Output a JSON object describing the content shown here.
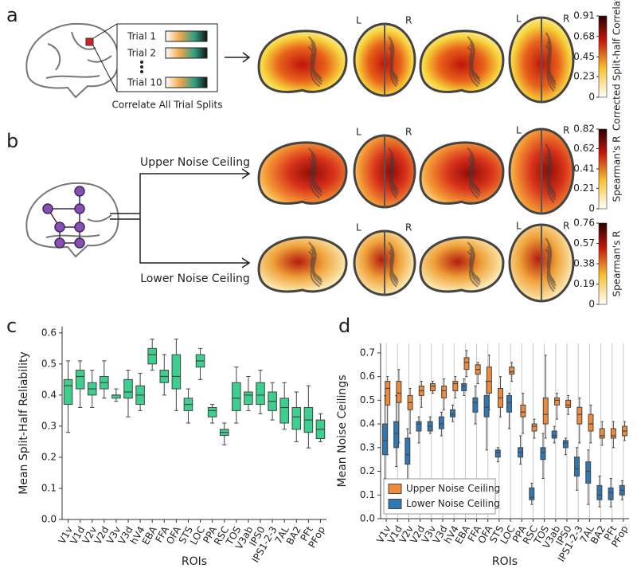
{
  "panel_labels": [
    "a",
    "b",
    "c",
    "d"
  ],
  "panel_a": {
    "trials": [
      "Trial 1",
      "Trial 2",
      "Trial 10"
    ],
    "caption": "Correlate All Trial Splits",
    "view_labels": [
      "L",
      "R"
    ],
    "colorbar": {
      "label": "Corrected Split-half Correlation",
      "ticks": [
        0.91,
        0.68,
        0.45,
        0.23,
        0
      ]
    }
  },
  "panel_b": {
    "branches": [
      "Upper Noise Ceiling",
      "Lower Noise Ceiling"
    ],
    "colorbars": [
      {
        "label": "Spearman's R",
        "ticks": [
          0.82,
          0.62,
          0.41,
          0.21,
          0
        ]
      },
      {
        "label": "Spearman's R",
        "ticks": [
          0.76,
          0.57,
          0.38,
          0.19,
          0
        ]
      }
    ]
  },
  "chart_data": [
    {
      "type": "box",
      "ylabel": "Mean Split-Half Reliability",
      "xlabel": "ROIs",
      "categories": [
        "V1v",
        "V1d",
        "V2v",
        "V2d",
        "V3v",
        "V3d",
        "hV4",
        "EBA",
        "FFA",
        "OFA",
        "STS",
        "LOC",
        "PPA",
        "RSC",
        "TOS",
        "V3ab",
        "IPS0",
        "IPS1-2-3",
        "7AL",
        "BA2",
        "PFt",
        "PFop"
      ],
      "ylim": [
        0,
        0.62
      ],
      "yticks": [
        {
          "value": 0,
          "label": "0.0"
        },
        0.1,
        0.2,
        0.3,
        0.4,
        0.5,
        0.6
      ],
      "series": [
        {
          "color": "#3dcf8e",
          "min": [
            0.28,
            0.36,
            0.36,
            0.39,
            0.38,
            0.33,
            0.35,
            0.48,
            0.4,
            0.35,
            0.31,
            0.45,
            0.31,
            0.24,
            0.31,
            0.35,
            0.34,
            0.32,
            0.29,
            0.25,
            0.23,
            0.25
          ],
          "q1": [
            0.37,
            0.42,
            0.4,
            0.42,
            0.39,
            0.39,
            0.37,
            0.5,
            0.44,
            0.42,
            0.35,
            0.49,
            0.33,
            0.27,
            0.35,
            0.37,
            0.37,
            0.35,
            0.31,
            0.29,
            0.28,
            0.26
          ],
          "median": [
            0.43,
            0.46,
            0.42,
            0.44,
            0.4,
            0.41,
            0.4,
            0.53,
            0.46,
            0.46,
            0.37,
            0.51,
            0.35,
            0.28,
            0.39,
            0.4,
            0.4,
            0.38,
            0.36,
            0.33,
            0.32,
            0.29
          ],
          "q3": [
            0.45,
            0.48,
            0.44,
            0.46,
            0.4,
            0.45,
            0.43,
            0.55,
            0.48,
            0.53,
            0.39,
            0.53,
            0.36,
            0.29,
            0.44,
            0.41,
            0.44,
            0.41,
            0.39,
            0.36,
            0.36,
            0.32
          ],
          "max": [
            0.51,
            0.51,
            0.48,
            0.51,
            0.42,
            0.48,
            0.47,
            0.58,
            0.53,
            0.58,
            0.42,
            0.55,
            0.37,
            0.31,
            0.49,
            0.46,
            0.48,
            0.44,
            0.44,
            0.41,
            0.43,
            0.34
          ]
        }
      ]
    },
    {
      "type": "box",
      "ylabel": "Mean Noise Ceilings",
      "xlabel": "ROIs",
      "categories": [
        "V1v",
        "V1d",
        "V2v",
        "V2d",
        "V3v",
        "V3d",
        "hV4",
        "EBA",
        "FFA",
        "OFA",
        "STS",
        "LOC",
        "PPA",
        "RSC",
        "TOS",
        "V3ab",
        "IPS0",
        "IPS1-2-3",
        "7AL",
        "BA2",
        "PFt",
        "PFop"
      ],
      "ylim": [
        0,
        0.74
      ],
      "yticks": [
        {
          "value": 0,
          "label": "0.0"
        },
        0.1,
        0.2,
        0.3,
        0.4,
        0.5,
        0.6,
        0.7
      ],
      "grid_x": true,
      "legend": "lower left",
      "series": [
        {
          "name": "Upper Noise Ceiling",
          "color": "#ee8a3a",
          "min": [
            0.27,
            0.32,
            0.36,
            0.47,
            0.53,
            0.46,
            0.51,
            0.6,
            0.57,
            0.46,
            0.43,
            0.58,
            0.36,
            0.34,
            0.34,
            0.42,
            0.44,
            0.32,
            0.32,
            0.31,
            0.3,
            0.33
          ],
          "q1": [
            0.48,
            0.49,
            0.46,
            0.52,
            0.54,
            0.51,
            0.54,
            0.63,
            0.61,
            0.53,
            0.47,
            0.61,
            0.43,
            0.37,
            0.4,
            0.48,
            0.47,
            0.4,
            0.37,
            0.34,
            0.34,
            0.35
          ],
          "median": [
            0.55,
            0.53,
            0.49,
            0.54,
            0.56,
            0.54,
            0.57,
            0.66,
            0.63,
            0.58,
            0.51,
            0.62,
            0.45,
            0.39,
            0.44,
            0.5,
            0.48,
            0.44,
            0.4,
            0.35,
            0.35,
            0.37
          ],
          "q3": [
            0.58,
            0.58,
            0.52,
            0.56,
            0.57,
            0.56,
            0.58,
            0.68,
            0.65,
            0.64,
            0.55,
            0.64,
            0.48,
            0.4,
            0.51,
            0.51,
            0.5,
            0.47,
            0.44,
            0.38,
            0.38,
            0.39
          ],
          "max": [
            0.6,
            0.63,
            0.55,
            0.58,
            0.58,
            0.59,
            0.6,
            0.71,
            0.66,
            0.69,
            0.6,
            0.66,
            0.53,
            0.42,
            0.69,
            0.53,
            0.52,
            0.51,
            0.48,
            0.41,
            0.41,
            0.41
          ]
        },
        {
          "name": "Lower Noise Ceiling",
          "color": "#2f78b4",
          "min": [
            0.17,
            0.22,
            0.15,
            0.32,
            0.36,
            0.35,
            0.41,
            0.52,
            0.4,
            0.29,
            0.24,
            0.38,
            0.23,
            0.06,
            0.17,
            0.32,
            0.27,
            0.12,
            0.06,
            0.05,
            0.05,
            0.08
          ],
          "q1": [
            0.27,
            0.3,
            0.23,
            0.37,
            0.37,
            0.38,
            0.43,
            0.54,
            0.45,
            0.43,
            0.26,
            0.45,
            0.26,
            0.08,
            0.25,
            0.34,
            0.3,
            0.18,
            0.15,
            0.08,
            0.08,
            0.1
          ],
          "median": [
            0.33,
            0.36,
            0.27,
            0.4,
            0.39,
            0.4,
            0.44,
            0.56,
            0.49,
            0.47,
            0.28,
            0.49,
            0.28,
            0.09,
            0.28,
            0.35,
            0.32,
            0.21,
            0.2,
            0.1,
            0.11,
            0.12
          ],
          "q3": [
            0.4,
            0.41,
            0.34,
            0.41,
            0.41,
            0.43,
            0.46,
            0.57,
            0.51,
            0.52,
            0.29,
            0.52,
            0.3,
            0.13,
            0.3,
            0.37,
            0.33,
            0.26,
            0.24,
            0.14,
            0.13,
            0.14
          ],
          "max": [
            0.52,
            0.52,
            0.38,
            0.43,
            0.43,
            0.45,
            0.48,
            0.59,
            0.56,
            0.58,
            0.3,
            0.53,
            0.35,
            0.15,
            0.36,
            0.39,
            0.34,
            0.3,
            0.29,
            0.18,
            0.17,
            0.16
          ]
        }
      ]
    }
  ]
}
